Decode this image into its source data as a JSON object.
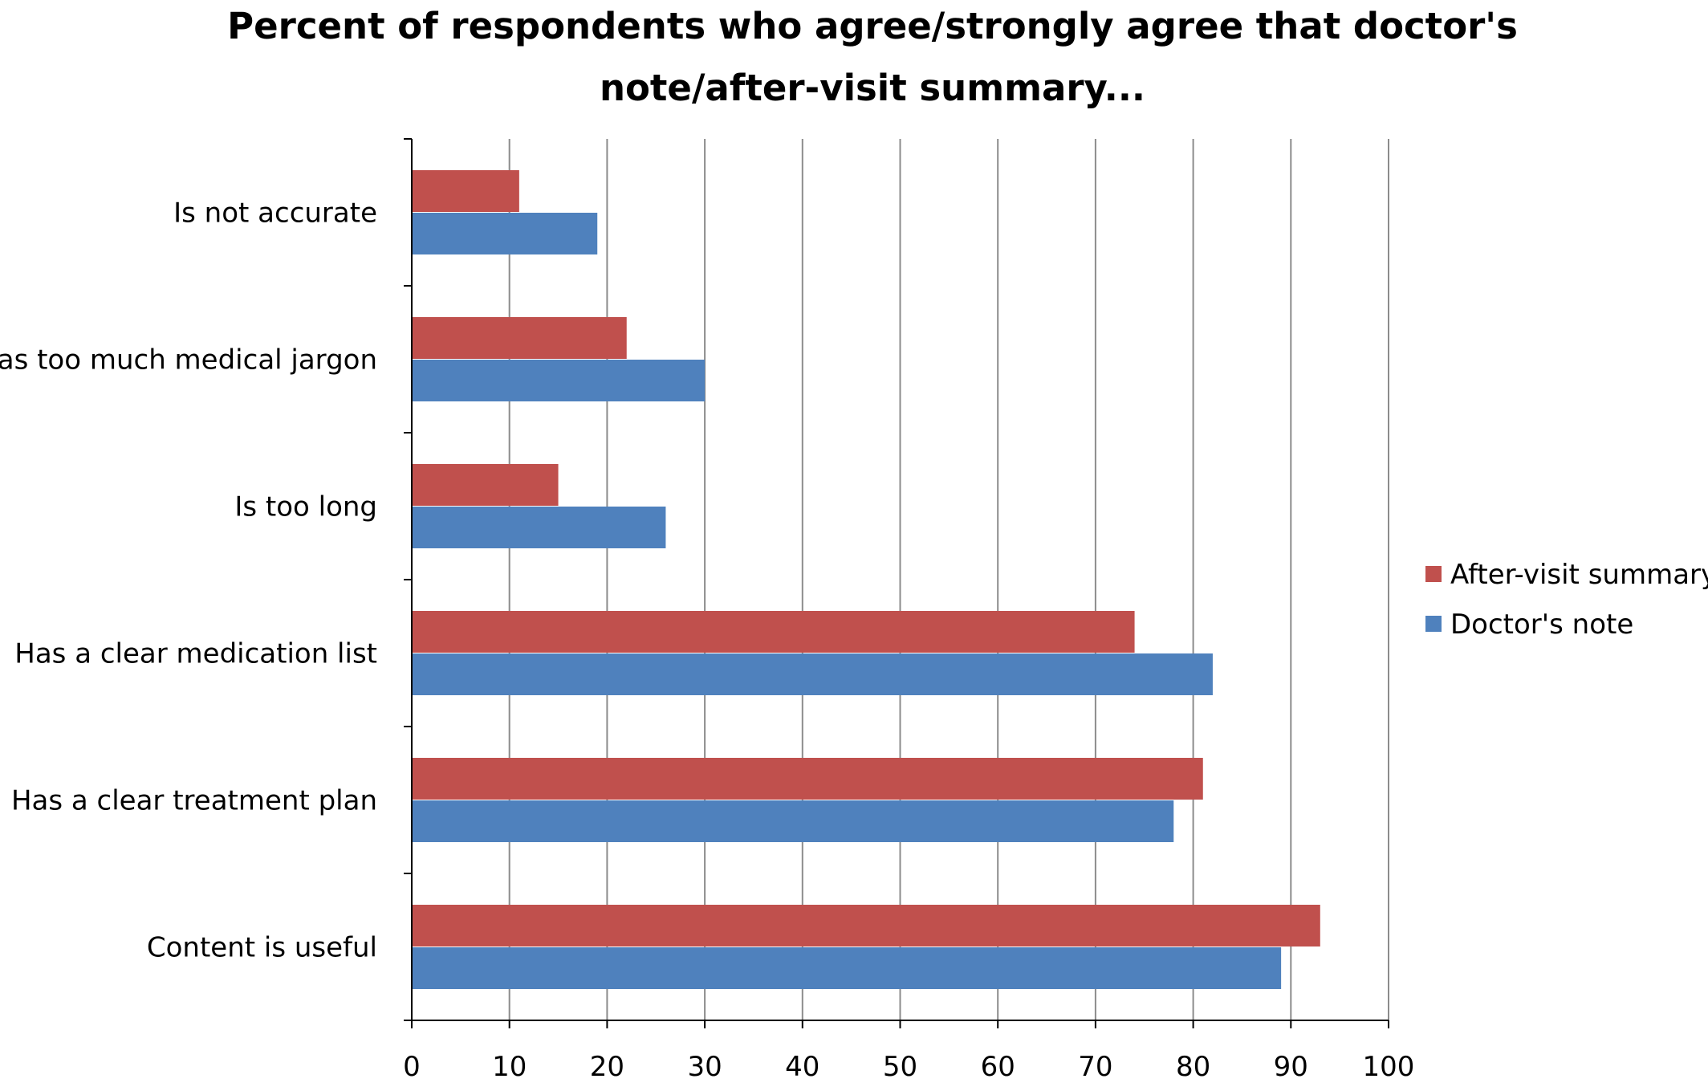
{
  "chart_data": {
    "type": "bar",
    "orientation": "horizontal",
    "title_lines": [
      "Percent of respondents who agree/strongly agree that doctor's",
      "note/after-visit summary..."
    ],
    "categories": [
      "Is not accurate",
      "Has too much medical jargon",
      "Is too long",
      "Has a clear medication list",
      "Has a clear treatment plan",
      "Content is useful"
    ],
    "series": [
      {
        "name": "After-visit summary",
        "color": "#C0504D",
        "values": [
          11,
          22,
          15,
          74,
          81,
          93
        ]
      },
      {
        "name": "Doctor's note",
        "color": "#4F81BD",
        "values": [
          19,
          30,
          26,
          82,
          78,
          89
        ]
      }
    ],
    "xlim": [
      0,
      100
    ],
    "x_ticks": [
      "0",
      "10",
      "20",
      "30",
      "40",
      "50",
      "60",
      "70",
      "80",
      "90",
      "100"
    ],
    "grid": "vertical gridlines on",
    "legend_position": "right"
  }
}
